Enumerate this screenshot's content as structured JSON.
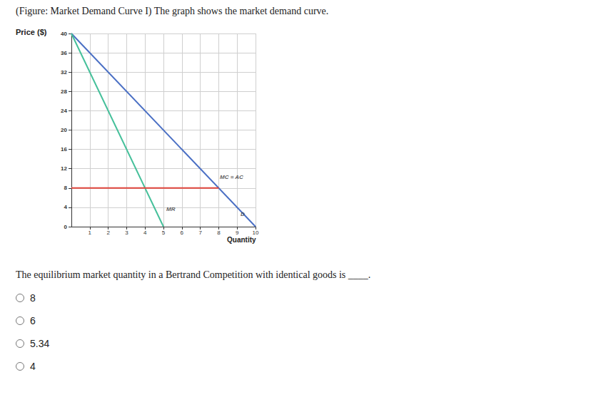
{
  "header": "(Figure: Market Demand Curve I) The graph shows the market demand curve.",
  "question": "The equilibrium market quantity in a Bertrand Competition with identical goods is ____.",
  "options": [
    "8",
    "6",
    "5.34",
    "4"
  ],
  "chart_data": {
    "type": "line",
    "y_label": "Price ($)",
    "x_label": "Quantity",
    "xlim": [
      0,
      10
    ],
    "xticks": [
      1,
      2,
      3,
      4,
      5,
      6,
      7,
      8,
      9,
      10
    ],
    "ylim": [
      0,
      40
    ],
    "yticks": [
      0,
      4,
      8,
      12,
      16,
      20,
      24,
      28,
      32,
      36,
      40
    ],
    "grid": true,
    "series": [
      {
        "color": "#4a6fc4",
        "x": [
          0,
          10
        ],
        "values": [
          40,
          0
        ]
      },
      {
        "color": "#45c09a",
        "x": [
          0,
          5
        ],
        "values": [
          40,
          0
        ]
      },
      {
        "color": "#e0453c",
        "x": [
          0,
          8
        ],
        "values": [
          8,
          8
        ]
      }
    ],
    "annotations": [
      {
        "text": "MC = AC",
        "x": 8.7,
        "y": 10.3
      },
      {
        "text": "MR",
        "x": 5.4,
        "y": 3.6
      },
      {
        "text": "D",
        "x": 9.3,
        "y": 2.6
      }
    ]
  }
}
